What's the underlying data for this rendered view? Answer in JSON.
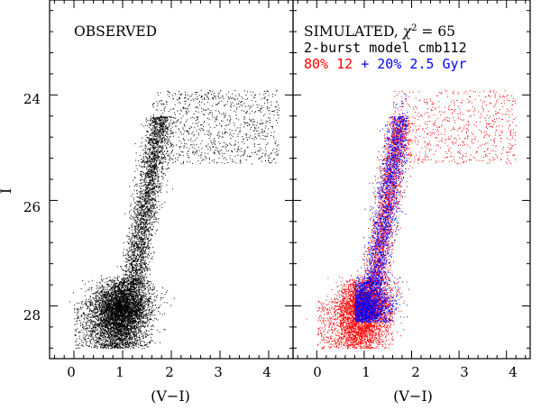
{
  "chart_data": [
    {
      "type": "scatter",
      "panel": "left",
      "title": "OBSERVED",
      "xlabel": "(V−I)",
      "ylabel": "I",
      "xlim": [
        -0.5,
        4.5
      ],
      "ylim": [
        29.0,
        22.2
      ],
      "y_inverted": true,
      "x_ticks": [
        "0",
        "1",
        "2",
        "3",
        "4"
      ],
      "y_ticks": [
        "24",
        "26",
        "28"
      ],
      "series": [
        {
          "name": "observed stars",
          "color": "#000000"
        }
      ]
    },
    {
      "type": "scatter",
      "panel": "right",
      "title_prefix": "SIMULATED, ",
      "chi_symbol": "χ",
      "chi_exp": "2",
      "chi_value": " = 65",
      "model_label": "2-burst model cmb112",
      "legend_red": "80% 12",
      "legend_plus": "+",
      "legend_blue": "20% 2.5 Gyr",
      "xlabel": "(V−I)",
      "xlim": [
        -0.5,
        4.5
      ],
      "ylim": [
        29.0,
        22.2
      ],
      "y_inverted": true,
      "x_ticks": [
        "0",
        "1",
        "2",
        "3",
        "4"
      ],
      "series": [
        {
          "name": "80% 12 Gyr population",
          "color": "#ff0000"
        },
        {
          "name": "20% 2.5 Gyr population",
          "color": "#0000ff"
        }
      ]
    }
  ]
}
